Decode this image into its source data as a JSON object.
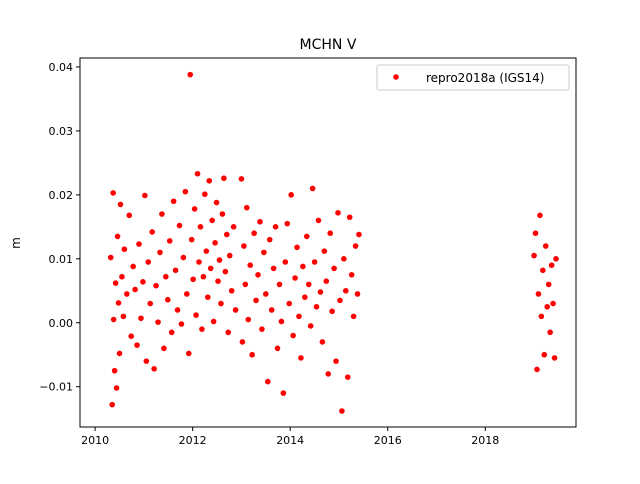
{
  "chart_data": {
    "type": "scatter",
    "title": "MCHN V",
    "xlabel": "",
    "ylabel": "m",
    "xlim": [
      2009.69,
      2019.86
    ],
    "ylim": [
      -0.0163,
      0.0414
    ],
    "xticks": [
      2010,
      2012,
      2014,
      2016,
      2018
    ],
    "xtick_labels": [
      "2010",
      "2012",
      "2014",
      "2016",
      "2018"
    ],
    "yticks": [
      -0.01,
      0.0,
      0.01,
      0.02,
      0.03,
      0.04
    ],
    "ytick_labels": [
      "−0.01",
      "0.00",
      "0.01",
      "0.02",
      "0.03",
      "0.04"
    ],
    "grid": false,
    "legend": {
      "placement": "top-right",
      "entries": [
        "repro2018a (IGS14)"
      ]
    },
    "series": [
      {
        "name": "repro2018a (IGS14)",
        "color": "#ff0000",
        "marker": "circle",
        "points": [
          [
            2010.32,
            0.0102
          ],
          [
            2010.35,
            -0.0128
          ],
          [
            2010.37,
            0.0203
          ],
          [
            2010.38,
            0.0005
          ],
          [
            2010.4,
            -0.0075
          ],
          [
            2010.42,
            0.0062
          ],
          [
            2010.44,
            -0.0102
          ],
          [
            2010.46,
            0.0135
          ],
          [
            2010.48,
            0.0031
          ],
          [
            2010.5,
            -0.0048
          ],
          [
            2010.52,
            0.0185
          ],
          [
            2010.55,
            0.0072
          ],
          [
            2010.58,
            0.001
          ],
          [
            2010.6,
            0.0115
          ],
          [
            2010.65,
            0.0045
          ],
          [
            2010.7,
            0.0168
          ],
          [
            2010.74,
            -0.0021
          ],
          [
            2010.78,
            0.0088
          ],
          [
            2010.82,
            0.0052
          ],
          [
            2010.86,
            -0.0035
          ],
          [
            2010.9,
            0.0123
          ],
          [
            2010.94,
            0.0007
          ],
          [
            2010.98,
            0.0064
          ],
          [
            2011.02,
            0.0199
          ],
          [
            2011.05,
            -0.006
          ],
          [
            2011.09,
            0.0095
          ],
          [
            2011.13,
            0.003
          ],
          [
            2011.17,
            0.0142
          ],
          [
            2011.21,
            -0.0072
          ],
          [
            2011.25,
            0.0058
          ],
          [
            2011.29,
            0.0001
          ],
          [
            2011.33,
            0.011
          ],
          [
            2011.37,
            0.017
          ],
          [
            2011.41,
            -0.004
          ],
          [
            2011.45,
            0.0072
          ],
          [
            2011.49,
            0.0036
          ],
          [
            2011.53,
            0.0128
          ],
          [
            2011.57,
            -0.0015
          ],
          [
            2011.61,
            0.019
          ],
          [
            2011.65,
            0.0082
          ],
          [
            2011.69,
            0.002
          ],
          [
            2011.73,
            0.0152
          ],
          [
            2011.77,
            -0.0002
          ],
          [
            2011.81,
            0.0102
          ],
          [
            2011.85,
            0.0205
          ],
          [
            2011.88,
            0.0045
          ],
          [
            2011.92,
            -0.0048
          ],
          [
            2011.95,
            0.0388
          ],
          [
            2011.98,
            0.013
          ],
          [
            2012.01,
            0.0068
          ],
          [
            2012.04,
            0.0178
          ],
          [
            2012.07,
            0.0012
          ],
          [
            2012.1,
            0.0233
          ],
          [
            2012.13,
            0.0095
          ],
          [
            2012.16,
            0.015
          ],
          [
            2012.19,
            -0.001
          ],
          [
            2012.22,
            0.0072
          ],
          [
            2012.25,
            0.0201
          ],
          [
            2012.28,
            0.0112
          ],
          [
            2012.31,
            0.004
          ],
          [
            2012.34,
            0.0222
          ],
          [
            2012.37,
            0.0085
          ],
          [
            2012.4,
            0.016
          ],
          [
            2012.43,
            0.0002
          ],
          [
            2012.46,
            0.0125
          ],
          [
            2012.49,
            0.0188
          ],
          [
            2012.52,
            0.0065
          ],
          [
            2012.55,
            0.0098
          ],
          [
            2012.58,
            0.003
          ],
          [
            2012.61,
            0.017
          ],
          [
            2012.64,
            0.0226
          ],
          [
            2012.67,
            0.008
          ],
          [
            2012.7,
            0.0138
          ],
          [
            2012.73,
            -0.0015
          ],
          [
            2012.76,
            0.0105
          ],
          [
            2012.8,
            0.005
          ],
          [
            2012.84,
            0.015
          ],
          [
            2012.88,
            0.002
          ],
          [
            2013.0,
            0.0225
          ],
          [
            2013.02,
            -0.003
          ],
          [
            2013.05,
            0.012
          ],
          [
            2013.08,
            0.006
          ],
          [
            2013.11,
            0.018
          ],
          [
            2013.14,
            0.0005
          ],
          [
            2013.18,
            0.009
          ],
          [
            2013.22,
            -0.005
          ],
          [
            2013.26,
            0.014
          ],
          [
            2013.3,
            0.0035
          ],
          [
            2013.34,
            0.0075
          ],
          [
            2013.38,
            0.0158
          ],
          [
            2013.42,
            -0.001
          ],
          [
            2013.46,
            0.011
          ],
          [
            2013.5,
            0.0045
          ],
          [
            2013.54,
            -0.0092
          ],
          [
            2013.58,
            0.013
          ],
          [
            2013.62,
            0.002
          ],
          [
            2013.66,
            0.0085
          ],
          [
            2013.7,
            0.015
          ],
          [
            2013.74,
            -0.004
          ],
          [
            2013.78,
            0.006
          ],
          [
            2013.82,
            0.0002
          ],
          [
            2013.86,
            -0.011
          ],
          [
            2013.9,
            0.0095
          ],
          [
            2013.94,
            0.0155
          ],
          [
            2013.98,
            0.003
          ],
          [
            2014.02,
            0.02
          ],
          [
            2014.06,
            -0.002
          ],
          [
            2014.1,
            0.007
          ],
          [
            2014.14,
            0.0118
          ],
          [
            2014.18,
            0.001
          ],
          [
            2014.22,
            -0.0055
          ],
          [
            2014.26,
            0.0088
          ],
          [
            2014.3,
            0.004
          ],
          [
            2014.34,
            0.0135
          ],
          [
            2014.38,
            0.006
          ],
          [
            2014.42,
            -0.0005
          ],
          [
            2014.46,
            0.021
          ],
          [
            2014.5,
            0.0095
          ],
          [
            2014.54,
            0.0025
          ],
          [
            2014.58,
            0.016
          ],
          [
            2014.62,
            0.0048
          ],
          [
            2014.66,
            -0.003
          ],
          [
            2014.7,
            0.0112
          ],
          [
            2014.74,
            0.0065
          ],
          [
            2014.78,
            -0.008
          ],
          [
            2014.82,
            0.014
          ],
          [
            2014.86,
            0.0018
          ],
          [
            2014.9,
            0.0085
          ],
          [
            2014.94,
            -0.006
          ],
          [
            2014.98,
            0.0172
          ],
          [
            2015.02,
            0.0035
          ],
          [
            2015.06,
            -0.0138
          ],
          [
            2015.1,
            0.01
          ],
          [
            2015.14,
            0.005
          ],
          [
            2015.18,
            -0.0085
          ],
          [
            2015.22,
            0.0165
          ],
          [
            2015.26,
            0.0075
          ],
          [
            2015.3,
            0.001
          ],
          [
            2015.34,
            0.012
          ],
          [
            2015.38,
            0.0045
          ],
          [
            2015.41,
            0.0138
          ],
          [
            2019.0,
            0.0105
          ],
          [
            2019.03,
            0.014
          ],
          [
            2019.06,
            -0.0073
          ],
          [
            2019.09,
            0.0045
          ],
          [
            2019.12,
            0.0168
          ],
          [
            2019.15,
            0.001
          ],
          [
            2019.18,
            0.0082
          ],
          [
            2019.21,
            -0.005
          ],
          [
            2019.24,
            0.012
          ],
          [
            2019.27,
            0.0025
          ],
          [
            2019.3,
            0.006
          ],
          [
            2019.33,
            -0.0015
          ],
          [
            2019.36,
            0.009
          ],
          [
            2019.39,
            0.003
          ],
          [
            2019.42,
            -0.0055
          ],
          [
            2019.45,
            0.01
          ]
        ]
      }
    ]
  }
}
